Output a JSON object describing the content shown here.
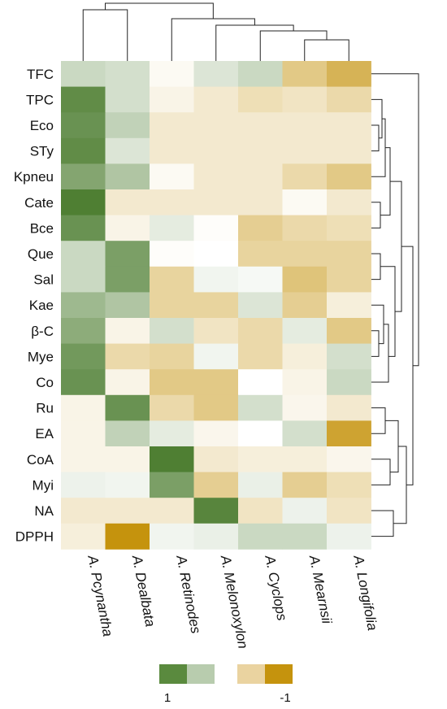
{
  "chart_data": {
    "type": "heatmap",
    "rows": [
      "TFC",
      "TPC",
      "Eco",
      "STy",
      "Kpneu",
      "Cate",
      "Bce",
      "Que",
      "Sal",
      "Kae",
      "β-C",
      "Mye",
      "Co",
      "Ru",
      "EA",
      "CoA",
      "Myi",
      "NA",
      "DPPH"
    ],
    "columns": [
      "A. Pcynantha",
      "A. Dealbata",
      "A. Retinodes",
      "A. Melonoxylon",
      "A. Cyclops",
      "A. Mearnsii",
      "A. Longifolia"
    ],
    "values": [
      [
        0.3,
        0.25,
        -0.05,
        0.2,
        0.3,
        -0.5,
        -0.7
      ],
      [
        0.9,
        0.25,
        -0.1,
        -0.2,
        -0.3,
        -0.25,
        -0.35
      ],
      [
        0.85,
        0.35,
        -0.2,
        -0.2,
        -0.2,
        -0.2,
        -0.2
      ],
      [
        0.9,
        0.2,
        -0.2,
        -0.2,
        -0.2,
        -0.2,
        -0.2
      ],
      [
        0.7,
        0.45,
        -0.05,
        -0.2,
        -0.2,
        -0.35,
        -0.5
      ],
      [
        1.0,
        -0.2,
        -0.2,
        -0.2,
        -0.2,
        -0.05,
        -0.2
      ],
      [
        0.85,
        -0.1,
        0.15,
        -0.02,
        -0.45,
        -0.35,
        -0.3
      ],
      [
        0.3,
        0.75,
        -0.02,
        0.0,
        -0.4,
        -0.4,
        -0.4
      ],
      [
        0.3,
        0.75,
        -0.4,
        0.08,
        0.05,
        -0.55,
        -0.4
      ],
      [
        0.55,
        0.45,
        -0.4,
        -0.4,
        0.2,
        -0.45,
        -0.15
      ],
      [
        0.65,
        -0.1,
        0.25,
        -0.25,
        -0.35,
        0.15,
        -0.5
      ],
      [
        0.8,
        -0.35,
        -0.4,
        0.08,
        -0.35,
        -0.15,
        0.25
      ],
      [
        0.85,
        -0.1,
        -0.5,
        -0.5,
        0.0,
        -0.1,
        0.3
      ],
      [
        -0.1,
        0.85,
        -0.35,
        -0.5,
        0.25,
        -0.08,
        -0.2
      ],
      [
        -0.1,
        0.35,
        0.15,
        -0.08,
        0.0,
        0.25,
        -0.85
      ],
      [
        -0.1,
        -0.1,
        1.0,
        -0.2,
        -0.15,
        -0.15,
        -0.08
      ],
      [
        0.1,
        0.08,
        0.75,
        -0.45,
        0.12,
        -0.45,
        -0.3
      ],
      [
        -0.2,
        -0.2,
        -0.2,
        0.95,
        -0.25,
        0.1,
        -0.25
      ],
      [
        -0.15,
        -1.0,
        0.08,
        0.12,
        0.3,
        0.3,
        0.1
      ]
    ],
    "color_scale": {
      "min": -1,
      "max": 1,
      "max_color": "#4f7f33",
      "mid_color": "#ffffff",
      "min_color": "#c5930d"
    },
    "legend": {
      "swatches": [
        "#5a8a3e",
        "#b8ccae",
        "#ead3a0",
        "#c5930d"
      ],
      "labels": [
        "1",
        "-1"
      ]
    },
    "row_dendrogram": "right",
    "column_dendrogram": "top"
  }
}
